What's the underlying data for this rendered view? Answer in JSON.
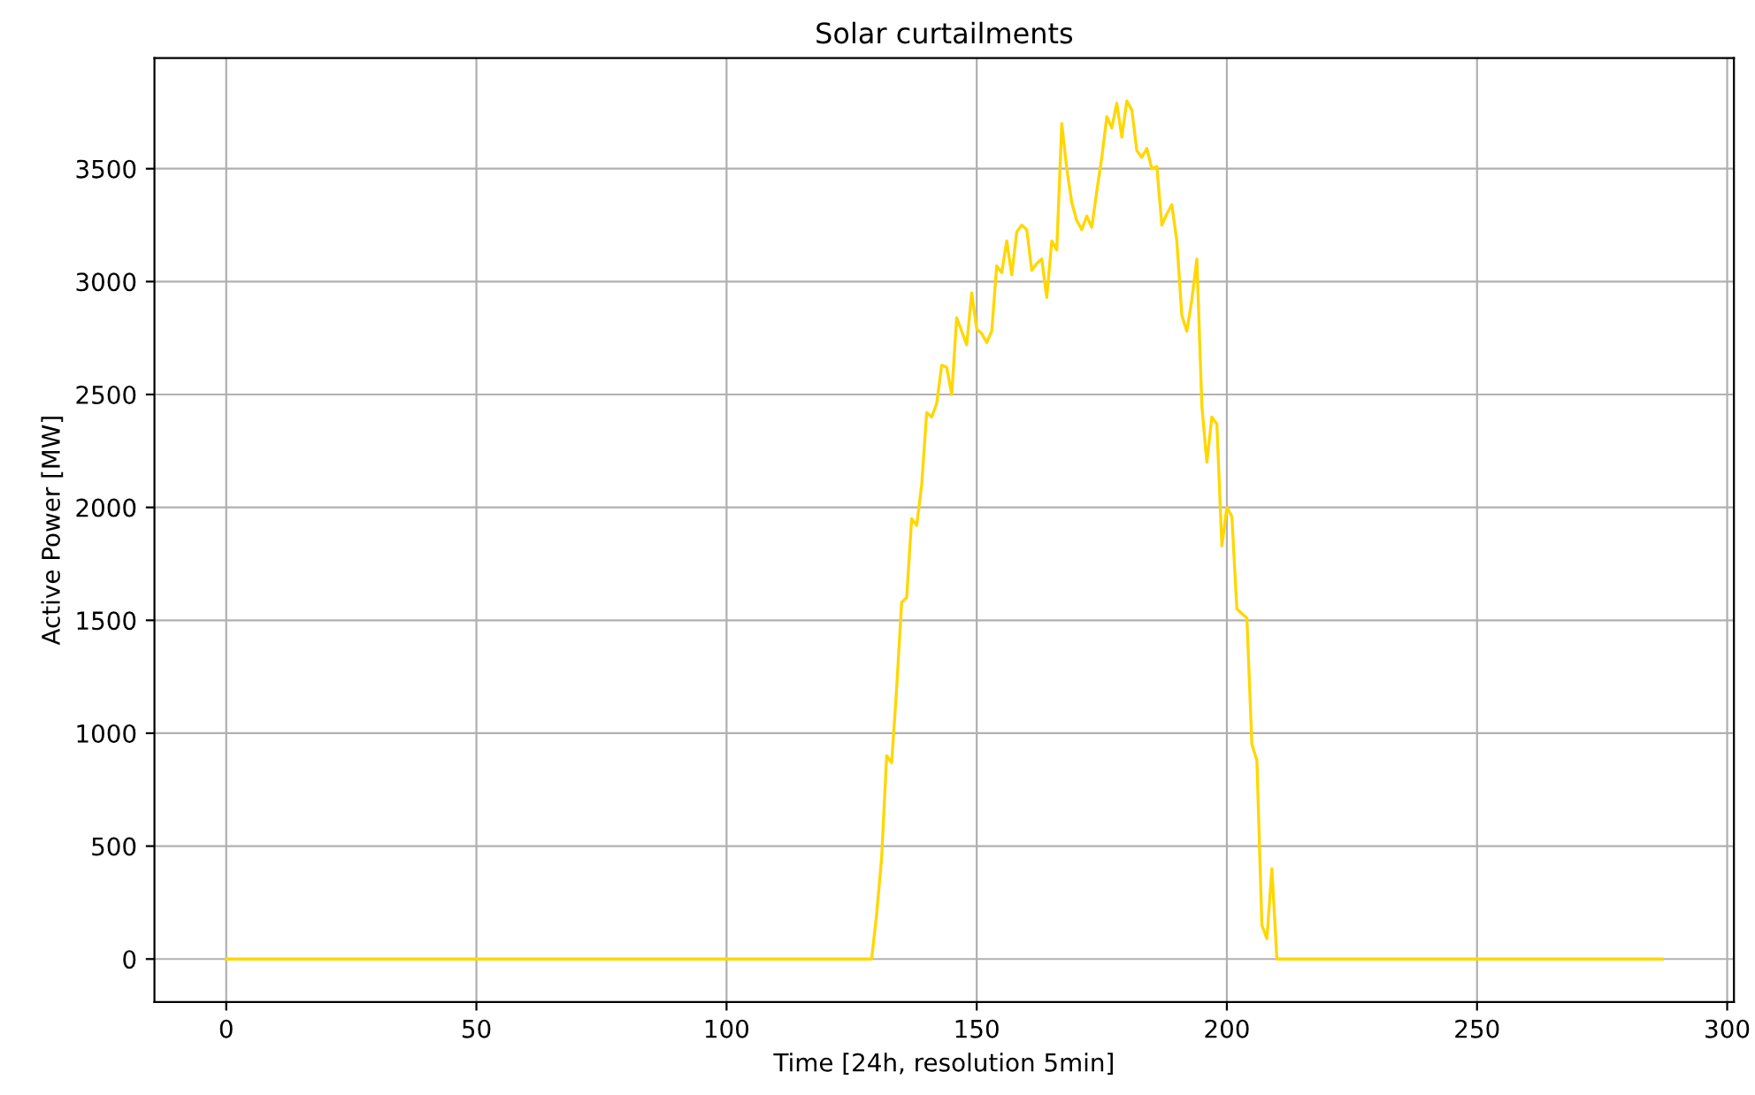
{
  "chart_data": {
    "type": "line",
    "title": "Solar curtailments",
    "xlabel": "Time [24h, resolution 5min]",
    "ylabel": "Active Power [MW]",
    "x": [
      0,
      129,
      130,
      131,
      132,
      133,
      134,
      135,
      136,
      137,
      138,
      139,
      140,
      141,
      142,
      143,
      144,
      145,
      146,
      147,
      148,
      149,
      150,
      151,
      152,
      153,
      154,
      155,
      156,
      157,
      158,
      159,
      160,
      161,
      162,
      163,
      164,
      165,
      166,
      167,
      168,
      169,
      170,
      171,
      172,
      173,
      174,
      175,
      176,
      177,
      178,
      179,
      180,
      181,
      182,
      183,
      184,
      185,
      186,
      187,
      188,
      189,
      190,
      191,
      192,
      193,
      194,
      195,
      196,
      197,
      198,
      199,
      200,
      201,
      202,
      203,
      204,
      205,
      206,
      207,
      208,
      209,
      210,
      287
    ],
    "series": [
      {
        "color": "#ffd700",
        "values": [
          0,
          0,
          200,
          450,
          900,
          870,
          1200,
          1580,
          1600,
          1950,
          1920,
          2100,
          2420,
          2400,
          2460,
          2630,
          2620,
          2500,
          2840,
          2780,
          2720,
          2950,
          2790,
          2770,
          2730,
          2780,
          3070,
          3040,
          3180,
          3030,
          3220,
          3250,
          3230,
          3050,
          3080,
          3100,
          2930,
          3180,
          3140,
          3700,
          3500,
          3350,
          3270,
          3230,
          3290,
          3240,
          3400,
          3550,
          3730,
          3680,
          3790,
          3640,
          3800,
          3760,
          3580,
          3550,
          3590,
          3500,
          3510,
          3250,
          3300,
          3340,
          3180,
          2850,
          2780,
          2920,
          3100,
          2450,
          2200,
          2400,
          2370,
          1830,
          2000,
          1960,
          1550,
          1530,
          1510,
          950,
          880,
          150,
          90,
          400,
          0,
          0
        ]
      }
    ],
    "xlim": [
      -14.35,
      301.35
    ],
    "xticks": [
      0,
      50,
      100,
      150,
      200,
      250,
      300
    ],
    "ylim": [
      -190,
      3990
    ],
    "yticks": [
      0,
      500,
      1000,
      1500,
      2000,
      2500,
      3000,
      3500
    ],
    "grid": true,
    "legend": false,
    "marker": "none",
    "line_style": "solid"
  }
}
